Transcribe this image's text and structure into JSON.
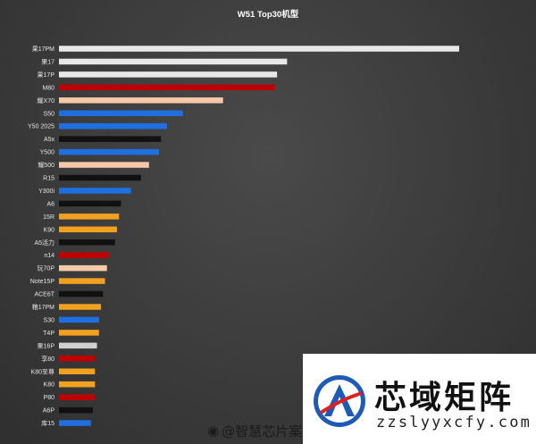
{
  "chart_data": {
    "type": "bar",
    "orientation": "horizontal",
    "title": "W51 Top30机型",
    "categories": [
      "果17PM",
      "果17",
      "果17P",
      "M80",
      "耀X70",
      "S50",
      "Y50 2025",
      "A5x",
      "Y500",
      "耀500",
      "R15",
      "Y300i",
      "A6",
      "15R",
      "K90",
      "A5活力",
      "n14",
      "玩70P",
      "Note15P",
      "ACE6T",
      "粮17PM",
      "S30",
      "T4P",
      "果16P",
      "享80",
      "K80至尊",
      "K80",
      "P80",
      "A6P",
      "库15"
    ],
    "values": [
      100,
      57,
      54.5,
      54,
      41,
      31,
      27,
      25.5,
      25,
      22.5,
      20.5,
      18,
      15.5,
      15,
      14.5,
      14,
      12.5,
      12,
      11.5,
      11,
      10.5,
      10,
      10,
      9.5,
      9,
      9,
      9,
      9,
      8.5,
      8
    ],
    "bar_colors": [
      "#e8e8e8",
      "#e8e8e8",
      "#e8e8e8",
      "#c00000",
      "#f5c9a8",
      "#1f6fe0",
      "#1f6fe0",
      "#111111",
      "#1f6fe0",
      "#f5c9a8",
      "#111111",
      "#1f6fe0",
      "#111111",
      "#f2a020",
      "#f2a020",
      "#111111",
      "#c00000",
      "#f5c9a8",
      "#f2a020",
      "#111111",
      "#f2a020",
      "#1f6fe0",
      "#f2a020",
      "#d0d0d0",
      "#c00000",
      "#f2a020",
      "#f2a020",
      "#c00000",
      "#111111",
      "#1f6fe0"
    ],
    "xlim": [
      0,
      100
    ],
    "grid": false,
    "legend": "none"
  },
  "watermark": {
    "weibo_icon": "weibo-icon",
    "weibo_text": "@智慧芯片案",
    "logo_icon": "building-emblem-icon",
    "logo_title": "芯域矩阵",
    "logo_url": "zzslyyxcfy.com"
  }
}
